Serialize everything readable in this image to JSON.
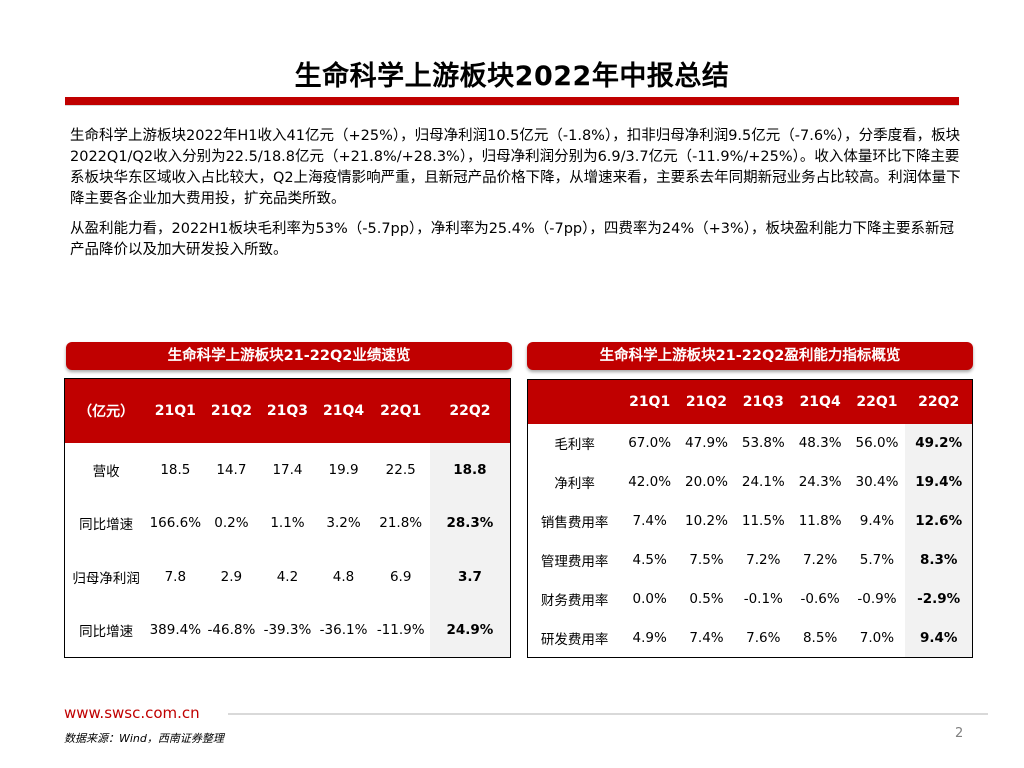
{
  "title": "生命科学上游板块2022年中报总结",
  "paragraphs": [
    "生命科学上游板块2022年H1收入41亿元（+25%），归母净利润10.5亿元（-1.8%），扣非归母净利润9.5亿元（-7.6%），分季度看，板块2022Q1/Q2收入分别为22.5/18.8亿元（+21.8%/+28.3%），归母净利润分别为6.9/3.7亿元（-11.9%/+25%）。收入体量环比下降主要系板块华东区域收入占比较大，Q2上海疫情影响严重，且新冠产品价格下降，从增速来看，主要系去年同期新冠业务占比较高。利润体量下降主要各企业加大费用投，扩充品类所致。",
    "从盈利能力看，2022H1板块毛利率为53%（-5.7pp），净利率为25.4%（-7pp），四费率为24%（+3%），板块盈利能力下降主要系新冠产品降价以及加大研发投入所致。"
  ],
  "left_table": {
    "heading": "生命科学上游板块21-22Q2业绩速览",
    "columns": [
      "（亿元）",
      "21Q1",
      "21Q2",
      "21Q3",
      "21Q4",
      "22Q1",
      "22Q2"
    ],
    "rows": [
      [
        "营收",
        "18.5",
        "14.7",
        "17.4",
        "19.9",
        "22.5",
        "18.8"
      ],
      [
        "同比增速",
        "166.6%",
        "0.2%",
        "1.1%",
        "3.2%",
        "21.8%",
        "28.3%"
      ],
      [
        "归母净利润",
        "7.8",
        "2.9",
        "4.2",
        "4.8",
        "6.9",
        "3.7"
      ],
      [
        "同比增速",
        "389.4%",
        "-46.8%",
        "-39.3%",
        "-36.1%",
        "-11.9%",
        "24.9%"
      ]
    ]
  },
  "right_table": {
    "heading": "生命科学上游板块21-22Q2盈利能力指标概览",
    "columns": [
      "",
      "21Q1",
      "21Q2",
      "21Q3",
      "21Q4",
      "22Q1",
      "22Q2"
    ],
    "rows": [
      [
        "毛利率",
        "67.0%",
        "47.9%",
        "53.8%",
        "48.3%",
        "56.0%",
        "49.2%"
      ],
      [
        "净利率",
        "42.0%",
        "20.0%",
        "24.1%",
        "24.3%",
        "30.4%",
        "19.4%"
      ],
      [
        "销售费用率",
        "7.4%",
        "10.2%",
        "11.5%",
        "11.8%",
        "9.4%",
        "12.6%"
      ],
      [
        "管理费用率",
        "4.5%",
        "7.5%",
        "7.2%",
        "7.2%",
        "5.7%",
        "8.3%"
      ],
      [
        "财务费用率",
        "0.0%",
        "0.5%",
        "-0.1%",
        "-0.6%",
        "-0.9%",
        "-2.9%"
      ],
      [
        "研发费用率",
        "4.9%",
        "7.4%",
        "7.6%",
        "8.5%",
        "7.0%",
        "9.4%"
      ]
    ]
  },
  "footer": {
    "url": "www.swsc.com.cn",
    "source": "数据来源：Wind，西南证券整理",
    "page": "2"
  },
  "colors": {
    "accent": "#c00000",
    "highlight_cell": "#f2f2f2"
  }
}
